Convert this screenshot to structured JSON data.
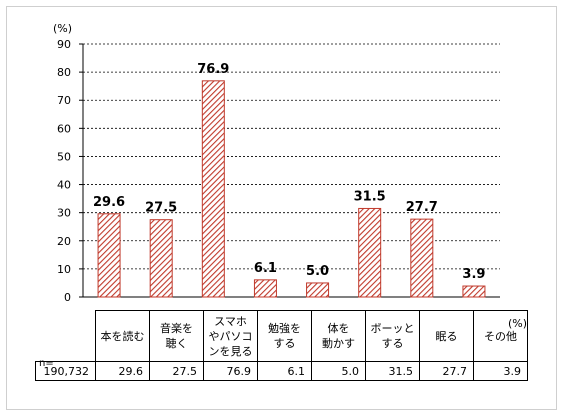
{
  "chart_data": {
    "type": "bar",
    "y_unit": "(%)",
    "ylim": [
      0,
      90
    ],
    "yticks": [
      0,
      10,
      20,
      30,
      40,
      50,
      60,
      70,
      80,
      90
    ],
    "grid": true,
    "categories": [
      "本を読む",
      "音楽を\n聴く",
      "スマホ\nやパソコ\nンを見る",
      "勉強を\nする",
      "体を\n動かす",
      "ボーッと\nする",
      "眠る",
      "その他"
    ],
    "values": [
      29.6,
      27.5,
      76.9,
      6.1,
      5.0,
      31.5,
      27.7,
      3.9
    ],
    "bar_color": "#c0392b",
    "bar_fill": "hatched"
  },
  "table": {
    "n_label": "n=",
    "n_value": "190,732",
    "unit": "(%)",
    "values": [
      "29.6",
      "27.5",
      "76.9",
      "6.1",
      "5.0",
      "31.5",
      "27.7",
      "3.9"
    ]
  }
}
